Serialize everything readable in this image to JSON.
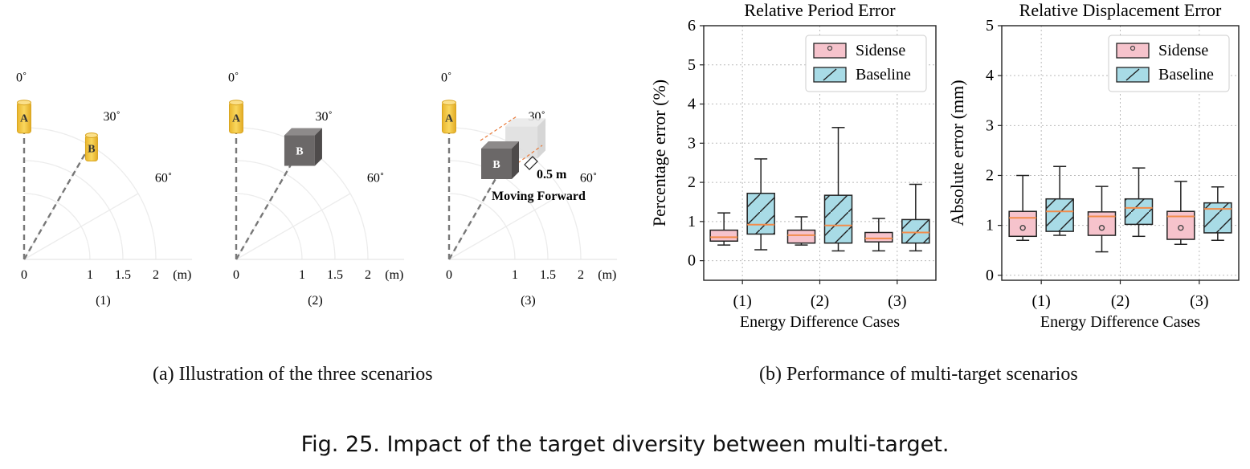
{
  "figure_caption": "Fig. 25.  Impact of the target diversity between multi-target.",
  "subfigure_a": {
    "caption": "(a)  Illustration of the three scenarios",
    "scenarios": [
      {
        "label": "(1)",
        "target_a": "A",
        "target_b": "B"
      },
      {
        "label": "(2)",
        "target_a": "A",
        "target_b": "B"
      },
      {
        "label": "(3)",
        "target_a": "A",
        "target_b": "B",
        "move_distance": "0.5 m",
        "move_label": "Moving Forward"
      }
    ],
    "angle_labels": [
      "0˚",
      "30˚",
      "60˚"
    ],
    "distance_labels": [
      "0",
      "1",
      "1.5",
      "2",
      "(m)"
    ],
    "colors": {
      "cylinder": "#f6c944",
      "cylinder_edge": "#d9a520",
      "box": "#6b6868",
      "ghost_box": "#dcdcdc",
      "arrow": "#e87a3a"
    }
  },
  "subfigure_b": {
    "caption": "(b)  Performance of multi-target scenarios",
    "legend": [
      "Sidense",
      "Baseline"
    ],
    "colors": {
      "sidense": "#f6c3cc",
      "baseline": "#a8dbe6",
      "median": "#f28c4b",
      "edge": "#222222",
      "grid": "#bbbbbb"
    }
  },
  "chart_data": [
    {
      "type": "box",
      "title": "Relative Period Error",
      "xlabel": "Energy Difference Cases",
      "ylabel": "Percentage error (%)",
      "categories": [
        "(1)",
        "(2)",
        "(3)"
      ],
      "ylim": [
        -0.5,
        6
      ],
      "yticks": [
        "0",
        "1",
        "2",
        "3",
        "4",
        "5",
        "6"
      ],
      "grid": true,
      "legend_position": "top-right",
      "series": [
        {
          "name": "Sidense",
          "boxes": [
            {
              "whislo": 0.4,
              "q1": 0.5,
              "med": 0.6,
              "q3": 0.78,
              "whishi": 1.22,
              "fliers": []
            },
            {
              "whislo": 0.4,
              "q1": 0.45,
              "med": 0.65,
              "q3": 0.78,
              "whishi": 1.12,
              "fliers": []
            },
            {
              "whislo": 0.25,
              "q1": 0.48,
              "med": 0.57,
              "q3": 0.72,
              "whishi": 1.08,
              "fliers": []
            }
          ]
        },
        {
          "name": "Baseline",
          "boxes": [
            {
              "whislo": 0.28,
              "q1": 0.68,
              "med": 0.92,
              "q3": 1.72,
              "whishi": 2.6,
              "fliers": []
            },
            {
              "whislo": 0.25,
              "q1": 0.45,
              "med": 0.9,
              "q3": 1.67,
              "whishi": 3.4,
              "fliers": []
            },
            {
              "whislo": 0.25,
              "q1": 0.45,
              "med": 0.72,
              "q3": 1.05,
              "whishi": 1.95,
              "fliers": []
            }
          ]
        }
      ]
    },
    {
      "type": "box",
      "title": "Relative Displacement Error",
      "xlabel": "Energy Difference Cases",
      "ylabel": "Absolute error (mm)",
      "categories": [
        "(1)",
        "(2)",
        "(3)"
      ],
      "ylim": [
        -0.1,
        5
      ],
      "yticks": [
        "0",
        "1",
        "2",
        "3",
        "4",
        "5"
      ],
      "grid": true,
      "legend_position": "top-right",
      "series": [
        {
          "name": "Sidense",
          "boxes": [
            {
              "whislo": 0.7,
              "q1": 0.78,
              "med": 1.15,
              "q3": 1.28,
              "whishi": 2.0,
              "fliers": [
                0.95
              ]
            },
            {
              "whislo": 0.47,
              "q1": 0.8,
              "med": 1.18,
              "q3": 1.27,
              "whishi": 1.78,
              "fliers": [
                0.95
              ]
            },
            {
              "whislo": 0.62,
              "q1": 0.72,
              "med": 1.18,
              "q3": 1.28,
              "whishi": 1.88,
              "fliers": [
                0.95
              ]
            }
          ]
        },
        {
          "name": "Baseline",
          "boxes": [
            {
              "whislo": 0.8,
              "q1": 0.88,
              "med": 1.28,
              "q3": 1.53,
              "whishi": 2.18,
              "fliers": []
            },
            {
              "whislo": 0.78,
              "q1": 1.02,
              "med": 1.35,
              "q3": 1.53,
              "whishi": 2.15,
              "fliers": []
            },
            {
              "whislo": 0.7,
              "q1": 0.85,
              "med": 1.33,
              "q3": 1.45,
              "whishi": 1.77,
              "fliers": []
            }
          ]
        }
      ]
    }
  ]
}
